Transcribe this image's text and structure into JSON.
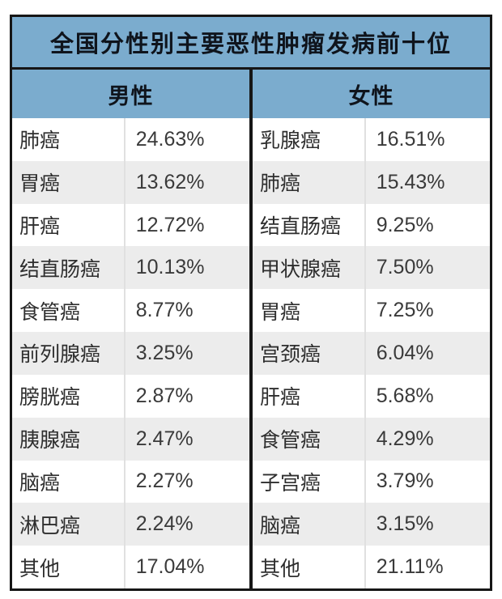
{
  "title": "全国分性别主要恶性肿瘤发病前十位",
  "male": {
    "header": "男性",
    "rows": [
      {
        "name": "肺癌",
        "rate": "24.63%"
      },
      {
        "name": "胃癌",
        "rate": "13.62%"
      },
      {
        "name": "肝癌",
        "rate": "12.72%"
      },
      {
        "name": "结直肠癌",
        "rate": "10.13%"
      },
      {
        "name": "食管癌",
        "rate": "8.77%"
      },
      {
        "name": "前列腺癌",
        "rate": "3.25%"
      },
      {
        "name": "膀胱癌",
        "rate": "2.87%"
      },
      {
        "name": "胰腺癌",
        "rate": "2.47%"
      },
      {
        "name": "脑癌",
        "rate": "2.27%"
      },
      {
        "name": "淋巴癌",
        "rate": "2.24%"
      },
      {
        "name": "其他",
        "rate": "17.04%"
      }
    ]
  },
  "female": {
    "header": "女性",
    "rows": [
      {
        "name": "乳腺癌",
        "rate": "16.51%"
      },
      {
        "name": "肺癌",
        "rate": "15.43%"
      },
      {
        "name": "结直肠癌",
        "rate": "9.25%"
      },
      {
        "name": "甲状腺癌",
        "rate": "7.50%"
      },
      {
        "name": "胃癌",
        "rate": "7.25%"
      },
      {
        "name": "宫颈癌",
        "rate": "6.04%"
      },
      {
        "name": "肝癌",
        "rate": "5.68%"
      },
      {
        "name": "食管癌",
        "rate": "4.29%"
      },
      {
        "name": "子宫癌",
        "rate": "3.79%"
      },
      {
        "name": "脑癌",
        "rate": "3.15%"
      },
      {
        "name": "其他",
        "rate": "21.11%"
      }
    ]
  },
  "colors": {
    "header_blue": "#7bacce",
    "row_alt_gray": "#ececec",
    "border_black": "#161616",
    "text_dark": "#2e2e2e"
  },
  "chart_data": {
    "type": "table",
    "title": "全国分性别主要恶性肿瘤发病前十位",
    "columns": [
      "男性",
      "女性"
    ],
    "series": [
      {
        "name": "男性",
        "categories": [
          "肺癌",
          "胃癌",
          "肝癌",
          "结直肠癌",
          "食管癌",
          "前列腺癌",
          "膀胱癌",
          "胰腺癌",
          "脑癌",
          "淋巴癌",
          "其他"
        ],
        "values_percent": [
          24.63,
          13.62,
          12.72,
          10.13,
          8.77,
          3.25,
          2.87,
          2.47,
          2.27,
          2.24,
          17.04
        ]
      },
      {
        "name": "女性",
        "categories": [
          "乳腺癌",
          "肺癌",
          "结直肠癌",
          "甲状腺癌",
          "胃癌",
          "宫颈癌",
          "肝癌",
          "食管癌",
          "子宫癌",
          "脑癌",
          "其他"
        ],
        "values_percent": [
          16.51,
          15.43,
          9.25,
          7.5,
          7.25,
          6.04,
          5.68,
          4.29,
          3.79,
          3.15,
          21.11
        ]
      }
    ]
  }
}
